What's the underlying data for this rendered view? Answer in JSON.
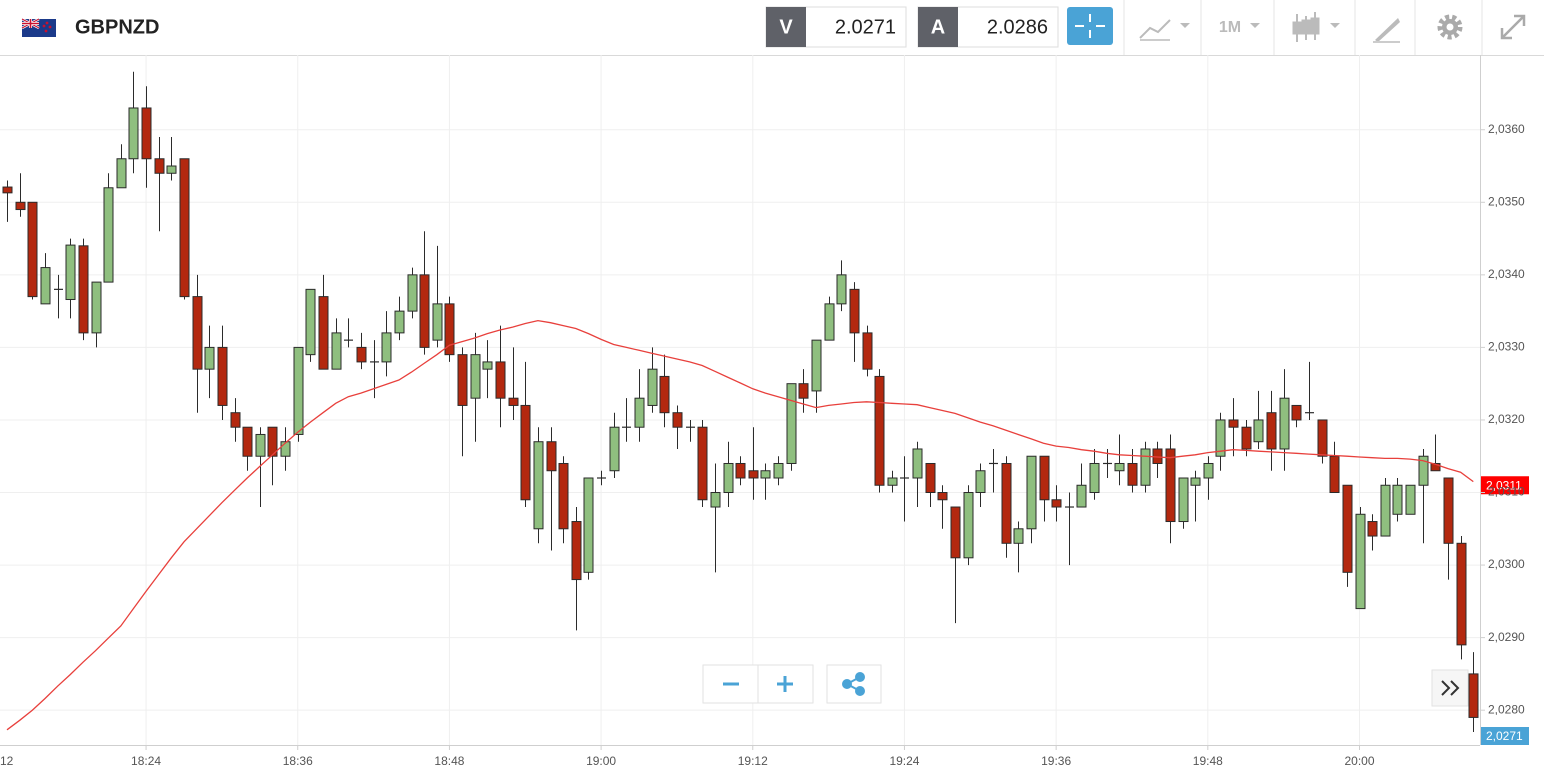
{
  "toolbar": {
    "symbol": "GBPNZD",
    "sell_label": "V",
    "sell_price": 2.0271,
    "buy_label": "A",
    "buy_price": 2.0286,
    "timeframe": "1M"
  },
  "chart_data": {
    "type": "candlestick",
    "categories": [
      null,
      null,
      null,
      null,
      null,
      null,
      null,
      null,
      null,
      null,
      null,
      "18:24",
      null,
      null,
      null,
      null,
      null,
      null,
      null,
      null,
      null,
      null,
      null,
      "18:36",
      null,
      null,
      null,
      null,
      null,
      null,
      null,
      null,
      null,
      null,
      null,
      "18:48",
      null,
      null,
      null,
      null,
      null,
      null,
      null,
      null,
      null,
      null,
      null,
      "19:00",
      null,
      null,
      null,
      null,
      null,
      null,
      null,
      null,
      null,
      null,
      null,
      "19:12",
      null,
      null,
      null,
      null,
      null,
      null,
      null,
      null,
      null,
      null,
      null,
      "19:24",
      null,
      null,
      null,
      null,
      null,
      null,
      null,
      null,
      null,
      null,
      null,
      "19:36",
      null,
      null,
      null,
      null,
      null,
      null,
      null,
      null,
      null,
      null,
      null,
      "19:48",
      null,
      null,
      null,
      null,
      null,
      null,
      null,
      null,
      null,
      null,
      null,
      "20:00",
      null,
      null,
      null,
      null,
      null,
      null,
      null,
      null,
      null
    ],
    "partial_x_label": "12",
    "open": [
      2.03521,
      2.035,
      2.035,
      2.0336,
      2.0338,
      2.03366,
      2.0344,
      2.0332,
      2.0339,
      2.0352,
      2.0356,
      2.0363,
      2.0356,
      2.0354,
      2.0356,
      2.0337,
      2.0327,
      2.033,
      2.0321,
      2.0319,
      2.0315,
      2.0319,
      2.0315,
      2.0318,
      2.0329,
      2.0337,
      2.0327,
      2.0331,
      2.033,
      2.0328,
      2.0328,
      2.0332,
      2.0335,
      2.034,
      2.0331,
      2.0336,
      2.0329,
      2.0323,
      2.0327,
      2.0328,
      2.0323,
      2.0322,
      2.0305,
      2.0317,
      2.0314,
      2.0306,
      2.0299,
      2.0312,
      2.0313,
      2.0319,
      2.0319,
      2.0322,
      2.0326,
      2.0321,
      2.0319,
      2.0319,
      2.0308,
      2.031,
      2.0314,
      2.0313,
      2.0312,
      2.0312,
      2.0314,
      2.0325,
      2.0324,
      2.0331,
      2.0336,
      2.0338,
      2.0332,
      2.0326,
      2.0311,
      2.0312,
      2.0312,
      2.0314,
      2.031,
      2.0308,
      2.0301,
      2.031,
      2.0314,
      2.0314,
      2.0303,
      2.0305,
      2.0315,
      2.0309,
      2.0308,
      2.0308,
      2.031,
      2.0314,
      2.0313,
      2.0314,
      2.0311,
      2.0316,
      2.0316,
      2.0306,
      2.0311,
      2.0312,
      2.0315,
      2.032,
      2.0319,
      2.0317,
      2.0321,
      2.0316,
      2.0322,
      2.0321,
      2.032,
      2.0315,
      2.0311,
      2.0294,
      2.0306,
      2.0304,
      2.0307,
      2.0307,
      2.0311,
      2.0314,
      2.0312,
      2.0303,
      2.0285
    ],
    "high": [
      2.0353,
      2.0354,
      2.035,
      2.0343,
      2.034,
      2.0345,
      2.0345,
      2.0339,
      2.0354,
      2.0358,
      2.0368,
      2.0366,
      2.0359,
      2.0359,
      2.0356,
      2.034,
      2.0333,
      2.0333,
      2.0323,
      2.0319,
      2.0319,
      2.0319,
      2.0319,
      2.033,
      2.0338,
      2.034,
      2.0334,
      2.0334,
      2.0332,
      2.0331,
      2.0335,
      2.0337,
      2.0341,
      2.0346,
      2.0344,
      2.0337,
      2.033,
      2.0332,
      2.0331,
      2.0333,
      2.033,
      2.0328,
      2.0319,
      2.0319,
      2.0315,
      2.0308,
      2.0312,
      2.0313,
      2.0321,
      2.0323,
      2.0327,
      2.033,
      2.0329,
      2.0322,
      2.032,
      2.032,
      2.0314,
      2.0317,
      2.0315,
      2.0319,
      2.0314,
      2.0315,
      2.0325,
      2.0327,
      2.0331,
      2.0337,
      2.0342,
      2.0339,
      2.0333,
      2.0327,
      2.0313,
      2.0315,
      2.0317,
      2.0314,
      2.0311,
      2.0308,
      2.0311,
      2.0314,
      2.0316,
      2.0315,
      2.0306,
      2.0315,
      2.0315,
      2.0311,
      2.031,
      2.0314,
      2.0316,
      2.0316,
      2.0318,
      2.0316,
      2.0317,
      2.0317,
      2.0318,
      2.0312,
      2.0313,
      2.0315,
      2.0321,
      2.0323,
      2.032,
      2.0324,
      2.0324,
      2.0327,
      2.0322,
      2.0328,
      2.032,
      2.0317,
      2.0311,
      2.0308,
      2.0307,
      2.0312,
      2.0312,
      2.0311,
      2.0316,
      2.0318,
      2.0312,
      2.0304,
      2.0288
    ],
    "low": [
      2.03473,
      2.0348,
      2.03366,
      2.0336,
      2.0334,
      2.0334,
      2.0331,
      2.033,
      2.0339,
      2.0352,
      2.0354,
      2.0352,
      2.0346,
      2.0353,
      2.03366,
      2.0321,
      2.0323,
      2.032,
      2.0317,
      2.0313,
      2.0308,
      2.0311,
      2.0313,
      2.0317,
      2.0328,
      2.0327,
      2.0327,
      2.033,
      2.0327,
      2.0323,
      2.0326,
      2.0331,
      2.0334,
      2.0329,
      2.033,
      2.0328,
      2.0315,
      2.0317,
      2.0323,
      2.0319,
      2.032,
      2.0308,
      2.0303,
      2.0302,
      2.0303,
      2.0291,
      2.0298,
      2.0311,
      2.0312,
      2.0317,
      2.0317,
      2.0321,
      2.0319,
      2.0316,
      2.0317,
      2.0308,
      2.0299,
      2.0308,
      2.0311,
      2.0309,
      2.0309,
      2.0311,
      2.0313,
      2.0321,
      2.0321,
      2.0331,
      2.0335,
      2.0328,
      2.0326,
      2.031,
      2.031,
      2.0306,
      2.0308,
      2.0308,
      2.0305,
      2.0292,
      2.03,
      2.0308,
      2.031,
      2.0301,
      2.0299,
      2.0303,
      2.0306,
      2.0306,
      2.03,
      2.0308,
      2.0309,
      2.0312,
      2.0311,
      2.031,
      2.031,
      2.0312,
      2.0303,
      2.0305,
      2.0306,
      2.0309,
      2.0313,
      2.0315,
      2.0315,
      2.0316,
      2.0313,
      2.0313,
      2.0319,
      2.032,
      2.0314,
      2.031,
      2.0297,
      2.0294,
      2.0302,
      2.0304,
      2.0306,
      2.0307,
      2.0303,
      2.0313,
      2.0298,
      2.0287,
      2.0277
    ],
    "close": [
      2.03513,
      2.0349,
      2.0337,
      2.0341,
      2.0338,
      2.03441,
      2.0332,
      2.0339,
      2.0352,
      2.0356,
      2.0363,
      2.0356,
      2.0354,
      2.0355,
      2.0337,
      2.0327,
      2.033,
      2.0322,
      2.0319,
      2.0315,
      2.0318,
      2.0315,
      2.0317,
      2.033,
      2.0338,
      2.0327,
      2.0332,
      2.0331,
      2.0328,
      2.0328,
      2.0332,
      2.0335,
      2.034,
      2.033,
      2.0336,
      2.0329,
      2.0322,
      2.0329,
      2.0328,
      2.0323,
      2.0322,
      2.0309,
      2.0317,
      2.0313,
      2.0305,
      2.0298,
      2.0312,
      2.0312,
      2.0319,
      2.0319,
      2.0323,
      2.0327,
      2.0321,
      2.0319,
      2.0319,
      2.0309,
      2.031,
      2.0314,
      2.0312,
      2.0312,
      2.0313,
      2.0314,
      2.0325,
      2.0323,
      2.0331,
      2.0336,
      2.034,
      2.0332,
      2.0327,
      2.0311,
      2.0312,
      2.0312,
      2.0316,
      2.031,
      2.0309,
      2.0301,
      2.031,
      2.0313,
      2.0314,
      2.0303,
      2.0305,
      2.0315,
      2.0309,
      2.0308,
      2.0308,
      2.0311,
      2.0314,
      2.0314,
      2.0314,
      2.0311,
      2.0316,
      2.0314,
      2.0306,
      2.0312,
      2.0312,
      2.0314,
      2.032,
      2.0319,
      2.0316,
      2.032,
      2.0316,
      2.0323,
      2.032,
      2.0321,
      2.0315,
      2.031,
      2.0299,
      2.0307,
      2.0304,
      2.0311,
      2.0311,
      2.0311,
      2.0315,
      2.0313,
      2.0303,
      2.0289,
      2.0279
    ],
    "up_color": "#8fbf7f",
    "down_color": "#b3280f",
    "outline_color": "#2b2b2b",
    "moving_average": {
      "color": "#e8403c",
      "values": [
        2.02773,
        2.02786,
        2.028,
        2.02816,
        2.02833,
        2.02849,
        2.02866,
        2.02882,
        2.02899,
        2.02916,
        2.0294,
        2.02964,
        2.02987,
        2.0301,
        2.03032,
        2.0305,
        2.03068,
        2.03086,
        2.03103,
        2.0312,
        2.03136,
        2.03152,
        2.03168,
        2.03183,
        2.03197,
        2.0321,
        2.03223,
        2.03232,
        2.03237,
        2.03243,
        2.03249,
        2.03255,
        2.03266,
        2.03278,
        2.0329,
        2.03303,
        2.03308,
        2.03313,
        2.03319,
        2.03324,
        2.03328,
        2.03333,
        2.03337,
        2.03334,
        2.0333,
        2.03326,
        2.03319,
        2.03311,
        2.03304,
        2.033,
        2.03296,
        2.03292,
        2.03288,
        2.03284,
        2.0328,
        2.03275,
        2.03267,
        2.03259,
        2.03251,
        2.03243,
        2.03237,
        2.03232,
        2.03227,
        2.03222,
        2.03217,
        2.0322,
        2.03222,
        2.03224,
        2.03225,
        2.03224,
        2.03223,
        2.03222,
        2.03221,
        2.03217,
        2.03213,
        2.03209,
        2.03203,
        2.03197,
        2.03192,
        2.03186,
        2.0318,
        2.03174,
        2.03168,
        2.03164,
        2.03162,
        2.03159,
        2.03157,
        2.03154,
        2.03152,
        2.03151,
        2.0315,
        2.03149,
        2.03148,
        2.0315,
        2.03152,
        2.03155,
        2.03157,
        2.03159,
        2.03158,
        2.03157,
        2.03156,
        2.03155,
        2.03154,
        2.03153,
        2.03152,
        2.03151,
        2.0315,
        2.03149,
        2.03148,
        2.03147,
        2.03147,
        2.03146,
        2.03144,
        2.03139,
        2.03133,
        2.03128,
        2.03115
      ]
    },
    "ylim": [
      2.02752,
      2.03703
    ],
    "yticks": [
      {
        "value": 2.028,
        "label": "2,0280"
      },
      {
        "value": 2.029,
        "label": "2,0290"
      },
      {
        "value": 2.03,
        "label": "2,0300"
      },
      {
        "value": 2.031,
        "label": "2,0310"
      },
      {
        "value": 2.032,
        "label": "2,0320"
      },
      {
        "value": 2.033,
        "label": "2,0330"
      },
      {
        "value": 2.034,
        "label": "2,0340"
      },
      {
        "value": 2.035,
        "label": "2,0350"
      },
      {
        "value": 2.036,
        "label": "2,0360"
      }
    ],
    "grid": true,
    "last_price_tag": {
      "value": 2.0311,
      "label": "2,0311",
      "color": "#ff0000"
    },
    "bid_price_tag": {
      "value": 2.0271,
      "label": "2,0271",
      "color": "#4aa3d6"
    }
  }
}
